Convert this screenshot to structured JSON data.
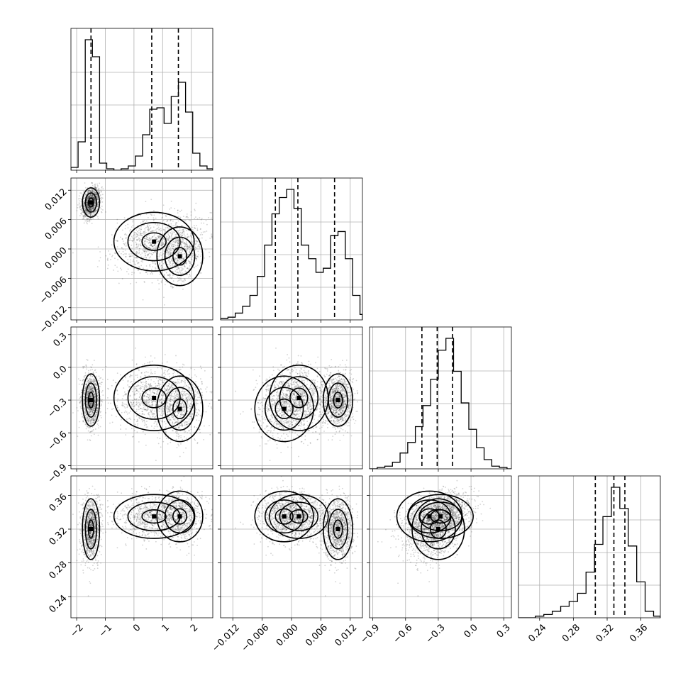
{
  "chart_data": {
    "type": "corner",
    "grid": true,
    "parameters": [
      {
        "ticks": [
          -2,
          -1,
          0,
          1,
          2
        ],
        "tick_labels": [
          "−2",
          "−1",
          "0",
          "1",
          "2"
        ],
        "range": [
          -2.2,
          2.75
        ],
        "quantiles": [
          -1.5,
          0.62,
          1.55
        ],
        "hist_bins_x": [
          -2.2,
          -1.95,
          -1.7,
          -1.45,
          -1.2,
          -0.95,
          -0.7,
          -0.45,
          -0.2,
          0.05,
          0.3,
          0.55,
          0.8,
          1.05,
          1.3,
          1.55,
          1.8,
          2.05,
          2.3,
          2.55,
          2.75
        ],
        "hist_counts": [
          0.02,
          0.2,
          0.92,
          0.8,
          0.05,
          0.01,
          0.0,
          0.01,
          0.03,
          0.1,
          0.25,
          0.43,
          0.44,
          0.33,
          0.52,
          0.62,
          0.41,
          0.12,
          0.03,
          0.01
        ]
      },
      {
        "ticks": [
          -0.012,
          -0.006,
          0.0,
          0.006,
          0.012
        ],
        "tick_labels": [
          "−0.012",
          "−0.006",
          "0.000",
          "0.006",
          "0.012"
        ],
        "range": [
          -0.0145,
          0.0145
        ],
        "quantiles": [
          -0.0033,
          0.0013,
          0.0088
        ],
        "hist_bins_x": [
          -0.0145,
          -0.013,
          -0.0115,
          -0.01,
          -0.0085,
          -0.007,
          -0.0055,
          -0.004,
          -0.0025,
          -0.001,
          0.0005,
          0.002,
          0.0035,
          0.005,
          0.0065,
          0.008,
          0.0095,
          0.011,
          0.0125,
          0.014,
          0.0145
        ],
        "hist_counts": [
          0.01,
          0.02,
          0.05,
          0.1,
          0.18,
          0.32,
          0.55,
          0.78,
          0.9,
          0.96,
          0.82,
          0.55,
          0.45,
          0.35,
          0.38,
          0.62,
          0.65,
          0.45,
          0.18,
          0.04
        ]
      },
      {
        "ticks": [
          -0.9,
          -0.6,
          -0.3,
          0.0,
          0.3
        ],
        "tick_labels": [
          "−0.9",
          "−0.6",
          "−0.3",
          "0.0",
          "0.3"
        ],
        "range": [
          -0.93,
          0.37
        ],
        "quantiles": [
          -0.45,
          -0.31,
          -0.17
        ],
        "hist_bins_x": [
          -0.93,
          -0.86,
          -0.79,
          -0.72,
          -0.65,
          -0.58,
          -0.51,
          -0.44,
          -0.37,
          -0.3,
          -0.23,
          -0.16,
          -0.09,
          -0.02,
          0.05,
          0.12,
          0.19,
          0.26,
          0.33,
          0.37
        ],
        "hist_counts": [
          0.0,
          0.01,
          0.02,
          0.05,
          0.12,
          0.2,
          0.32,
          0.48,
          0.68,
          0.9,
          0.99,
          0.74,
          0.5,
          0.3,
          0.16,
          0.07,
          0.02,
          0.01,
          0.0
        ]
      },
      {
        "ticks": [
          0.24,
          0.28,
          0.32,
          0.36
        ],
        "tick_labels": [
          "0.24",
          "0.28",
          "0.32",
          "0.36"
        ],
        "range": [
          0.215,
          0.383
        ],
        "quantiles": [
          0.306,
          0.328,
          0.341
        ],
        "hist_bins_x": [
          0.215,
          0.225,
          0.235,
          0.245,
          0.255,
          0.265,
          0.275,
          0.285,
          0.295,
          0.305,
          0.315,
          0.325,
          0.335,
          0.345,
          0.355,
          0.365,
          0.375,
          0.383
        ],
        "hist_counts": [
          0.0,
          0.0,
          0.01,
          0.02,
          0.04,
          0.07,
          0.1,
          0.15,
          0.28,
          0.45,
          0.62,
          0.8,
          0.67,
          0.44,
          0.22,
          0.04,
          0.01
        ]
      }
    ],
    "modes": [
      {
        "p": [
          -1.5,
          0.0095,
          -0.3,
          0.32
        ],
        "w": 0.45
      },
      {
        "p": [
          0.7,
          0.0015,
          -0.28,
          0.335
        ],
        "w": 0.32
      },
      {
        "p": [
          1.6,
          -0.0015,
          -0.38,
          0.335
        ],
        "w": 0.23
      }
    ],
    "mode_widths": [
      [
        0.15,
        0.0015,
        0.12,
        0.018
      ],
      [
        0.7,
        0.003,
        0.15,
        0.013
      ],
      [
        0.4,
        0.003,
        0.15,
        0.015
      ]
    ]
  }
}
